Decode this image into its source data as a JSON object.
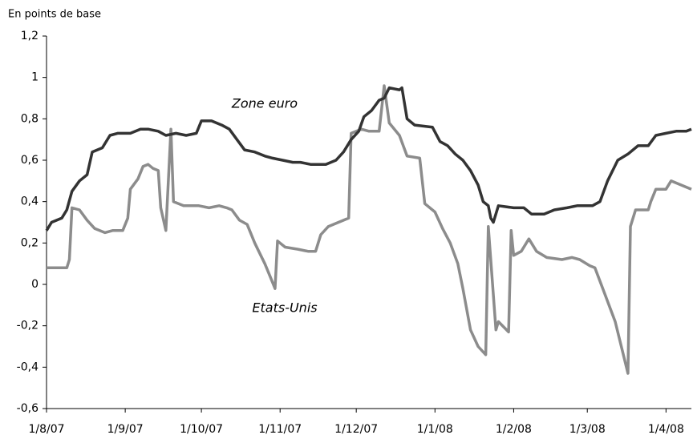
{
  "chart_data": {
    "type": "line",
    "ylabel": "En points de base",
    "annotations": [
      {
        "text": "Zone euro"
      },
      {
        "text": "Etats-Unis"
      }
    ],
    "xlim": [
      "2007-08-01",
      "2008-04-11"
    ],
    "xticks": [
      {
        "value": "2007-08-01",
        "label": "1/8/07"
      },
      {
        "value": "2007-09-01",
        "label": "1/9/07"
      },
      {
        "value": "2007-10-01",
        "label": "1/10/07"
      },
      {
        "value": "2007-11-01",
        "label": "1/11/07"
      },
      {
        "value": "2007-12-01",
        "label": "1/12/07"
      },
      {
        "value": "2008-01-01",
        "label": "1/1/08"
      },
      {
        "value": "2008-02-01",
        "label": "1/2/08"
      },
      {
        "value": "2008-03-01",
        "label": "1/3/08"
      },
      {
        "value": "2008-04-01",
        "label": "1/4/08"
      }
    ],
    "ylim": [
      -0.6,
      1.2
    ],
    "yticks": [
      {
        "value": 1.2,
        "label": "1,2"
      },
      1,
      {
        "value": 0.8,
        "label": "0,8"
      },
      {
        "value": 0.6,
        "label": "0,6"
      },
      {
        "value": 0.4,
        "label": "0,4"
      },
      {
        "value": 0.2,
        "label": "0,2"
      },
      0,
      {
        "value": -0.2,
        "label": "-0,2"
      },
      {
        "value": -0.4,
        "label": "-0,4"
      },
      {
        "value": -0.6,
        "label": "-0,6"
      }
    ],
    "grid": false,
    "series": [
      {
        "name": "Zone euro",
        "color": "#333333",
        "x": [
          "2007-08-01",
          "2007-08-03",
          "2007-08-07",
          "2007-08-09",
          "2007-08-11",
          "2007-08-14",
          "2007-08-17",
          "2007-08-19",
          "2007-08-23",
          "2007-08-26",
          "2007-08-29",
          "2007-09-03",
          "2007-09-07",
          "2007-09-10",
          "2007-09-14",
          "2007-09-17",
          "2007-09-21",
          "2007-09-25",
          "2007-09-29",
          "2007-10-01",
          "2007-10-05",
          "2007-10-09",
          "2007-10-12",
          "2007-10-15",
          "2007-10-18",
          "2007-10-22",
          "2007-10-26",
          "2007-10-29",
          "2007-11-02",
          "2007-11-06",
          "2007-11-09",
          "2007-11-13",
          "2007-11-19",
          "2007-11-23",
          "2007-11-26",
          "2007-11-29",
          "2007-12-02",
          "2007-12-04",
          "2007-12-07",
          "2007-12-10",
          "2007-12-12",
          "2007-12-14",
          "2007-12-18",
          "2007-12-19",
          "2007-12-21",
          "2007-12-24",
          "2007-12-31",
          "2008-01-03",
          "2008-01-06",
          "2008-01-09",
          "2008-01-12",
          "2008-01-15",
          "2008-01-18",
          "2008-01-20",
          "2008-01-22",
          "2008-01-23",
          "2008-01-24",
          "2008-01-26",
          "2008-02-01",
          "2008-02-05",
          "2008-02-08",
          "2008-02-13",
          "2008-02-17",
          "2008-02-22",
          "2008-02-26",
          "2008-03-03",
          "2008-03-06",
          "2008-03-09",
          "2008-03-13",
          "2008-03-17",
          "2008-03-21",
          "2008-03-25",
          "2008-03-28",
          "2008-04-01",
          "2008-04-05",
          "2008-04-09",
          "2008-04-11"
        ],
        "values": [
          0.26,
          0.3,
          0.32,
          0.36,
          0.45,
          0.5,
          0.53,
          0.64,
          0.66,
          0.72,
          0.73,
          0.73,
          0.75,
          0.75,
          0.74,
          0.72,
          0.73,
          0.72,
          0.73,
          0.79,
          0.79,
          0.77,
          0.75,
          0.7,
          0.65,
          0.64,
          0.62,
          0.61,
          0.6,
          0.59,
          0.59,
          0.58,
          0.58,
          0.6,
          0.64,
          0.7,
          0.74,
          0.81,
          0.84,
          0.89,
          0.9,
          0.95,
          0.94,
          0.95,
          0.8,
          0.77,
          0.76,
          0.69,
          0.67,
          0.63,
          0.6,
          0.55,
          0.48,
          0.4,
          0.38,
          0.32,
          0.3,
          0.38,
          0.37,
          0.37,
          0.34,
          0.34,
          0.36,
          0.37,
          0.38,
          0.38,
          0.4,
          0.5,
          0.6,
          0.63,
          0.67,
          0.67,
          0.72,
          0.73,
          0.74,
          0.74,
          0.75
        ]
      },
      {
        "name": "Etats-Unis",
        "color": "#8c8c8c",
        "x": [
          "2007-08-01",
          "2007-08-09",
          "2007-08-10",
          "2007-08-11",
          "2007-08-14",
          "2007-08-17",
          "2007-08-20",
          "2007-08-24",
          "2007-08-27",
          "2007-08-31",
          "2007-09-02",
          "2007-09-03",
          "2007-09-06",
          "2007-09-08",
          "2007-09-10",
          "2007-09-12",
          "2007-09-14",
          "2007-09-15",
          "2007-09-17",
          "2007-09-19",
          "2007-09-20",
          "2007-09-24",
          "2007-09-30",
          "2007-10-04",
          "2007-10-08",
          "2007-10-11",
          "2007-10-13",
          "2007-10-16",
          "2007-10-19",
          "2007-10-22",
          "2007-10-24",
          "2007-10-26",
          "2007-10-28",
          "2007-10-30",
          "2007-10-31",
          "2007-11-03",
          "2007-11-08",
          "2007-11-12",
          "2007-11-15",
          "2007-11-17",
          "2007-11-20",
          "2007-11-24",
          "2007-11-28",
          "2007-11-29",
          "2007-12-03",
          "2007-12-06",
          "2007-12-10",
          "2007-12-12",
          "2007-12-14",
          "2007-12-18",
          "2007-12-21",
          "2007-12-26",
          "2007-12-28",
          "2008-01-01",
          "2008-01-04",
          "2008-01-07",
          "2008-01-10",
          "2008-01-12",
          "2008-01-15",
          "2008-01-18",
          "2008-01-21",
          "2008-01-22",
          "2008-01-25",
          "2008-01-26",
          "2008-01-30",
          "2008-01-31",
          "2008-02-01",
          "2008-02-04",
          "2008-02-07",
          "2008-02-10",
          "2008-02-14",
          "2008-02-20",
          "2008-02-24",
          "2008-02-27",
          "2008-03-02",
          "2008-03-04",
          "2008-03-08",
          "2008-03-12",
          "2008-03-17",
          "2008-03-18",
          "2008-03-20",
          "2008-03-25",
          "2008-03-26",
          "2008-03-28",
          "2008-04-01",
          "2008-04-03",
          "2008-04-05",
          "2008-04-11"
        ],
        "values": [
          0.08,
          0.08,
          0.12,
          0.37,
          0.36,
          0.31,
          0.27,
          0.25,
          0.26,
          0.26,
          0.32,
          0.46,
          0.51,
          0.57,
          0.58,
          0.56,
          0.55,
          0.37,
          0.26,
          0.75,
          0.4,
          0.38,
          0.38,
          0.37,
          0.38,
          0.37,
          0.36,
          0.31,
          0.29,
          0.2,
          0.15,
          0.1,
          0.04,
          -0.02,
          0.21,
          0.18,
          0.17,
          0.16,
          0.16,
          0.24,
          0.28,
          0.3,
          0.32,
          0.73,
          0.75,
          0.74,
          0.74,
          0.96,
          0.78,
          0.72,
          0.62,
          0.61,
          0.39,
          0.35,
          0.27,
          0.2,
          0.1,
          -0.02,
          -0.22,
          -0.3,
          -0.34,
          0.28,
          -0.22,
          -0.18,
          -0.23,
          0.26,
          0.14,
          0.16,
          0.22,
          0.16,
          0.13,
          0.12,
          0.13,
          0.12,
          0.09,
          0.08,
          -0.05,
          -0.18,
          -0.43,
          0.28,
          0.36,
          0.36,
          0.4,
          0.46,
          0.46,
          0.5,
          0.49,
          0.46
        ]
      }
    ]
  }
}
